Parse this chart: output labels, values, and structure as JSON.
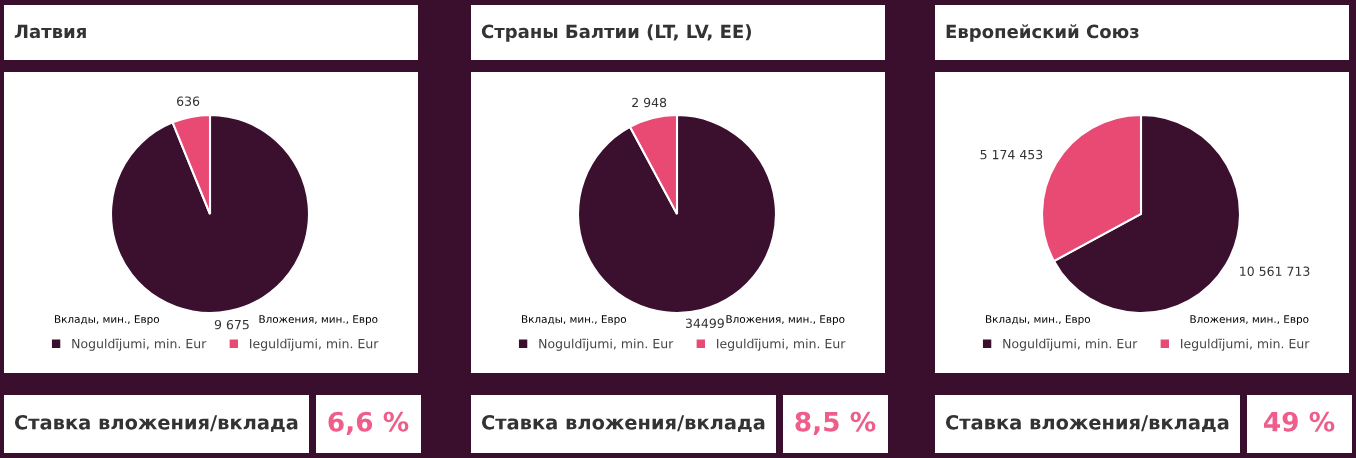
{
  "chart_data": [
    {
      "type": "pie",
      "title": "Латвия",
      "categories": [
        "Noguldījumi, min. Eur",
        "Ieguldījumi, min. Eur"
      ],
      "values": [
        9675,
        636
      ],
      "colors": [
        "#3b0f2e",
        "#e84a74"
      ],
      "value_labels": [
        "9 675",
        "636"
      ],
      "legend": "bottom",
      "annotations": [
        "Вклады, мин., Евро",
        "Вложения, мин., Евро"
      ]
    },
    {
      "type": "pie",
      "title": "Страны Балтии (LT, LV, EE)",
      "categories": [
        "Noguldījumi, min. Eur",
        "Ieguldījumi, min. Eur"
      ],
      "values": [
        34499,
        2948
      ],
      "colors": [
        "#3b0f2e",
        "#e84a74"
      ],
      "value_labels": [
        "34499",
        "2 948"
      ],
      "legend": "bottom",
      "annotations": [
        "Вклады, мин., Евро",
        "Вложения, мин., Евро"
      ]
    },
    {
      "type": "pie",
      "title": "Европейский Союз",
      "categories": [
        "Noguldījumi, min. Eur",
        "Ieguldījumi, min. Eur"
      ],
      "values": [
        10561713,
        5174453
      ],
      "colors": [
        "#3b0f2e",
        "#e84a74"
      ],
      "value_labels": [
        "10 561 713",
        "5 174 453"
      ],
      "legend": "bottom",
      "annotations": [
        "Вклады, мин., Евро",
        "Вложения, мин., Евро"
      ]
    },
    {
      "type": "other",
      "title": "Ставка вложения/вклада",
      "annotations": [
        "6,6 %"
      ]
    },
    {
      "type": "other",
      "title": "Ставка вложения/вклада",
      "annotations": [
        "8,5 %"
      ]
    },
    {
      "type": "other",
      "title": "Ставка вложения/вклада",
      "annotations": [
        "49 %"
      ]
    }
  ]
}
